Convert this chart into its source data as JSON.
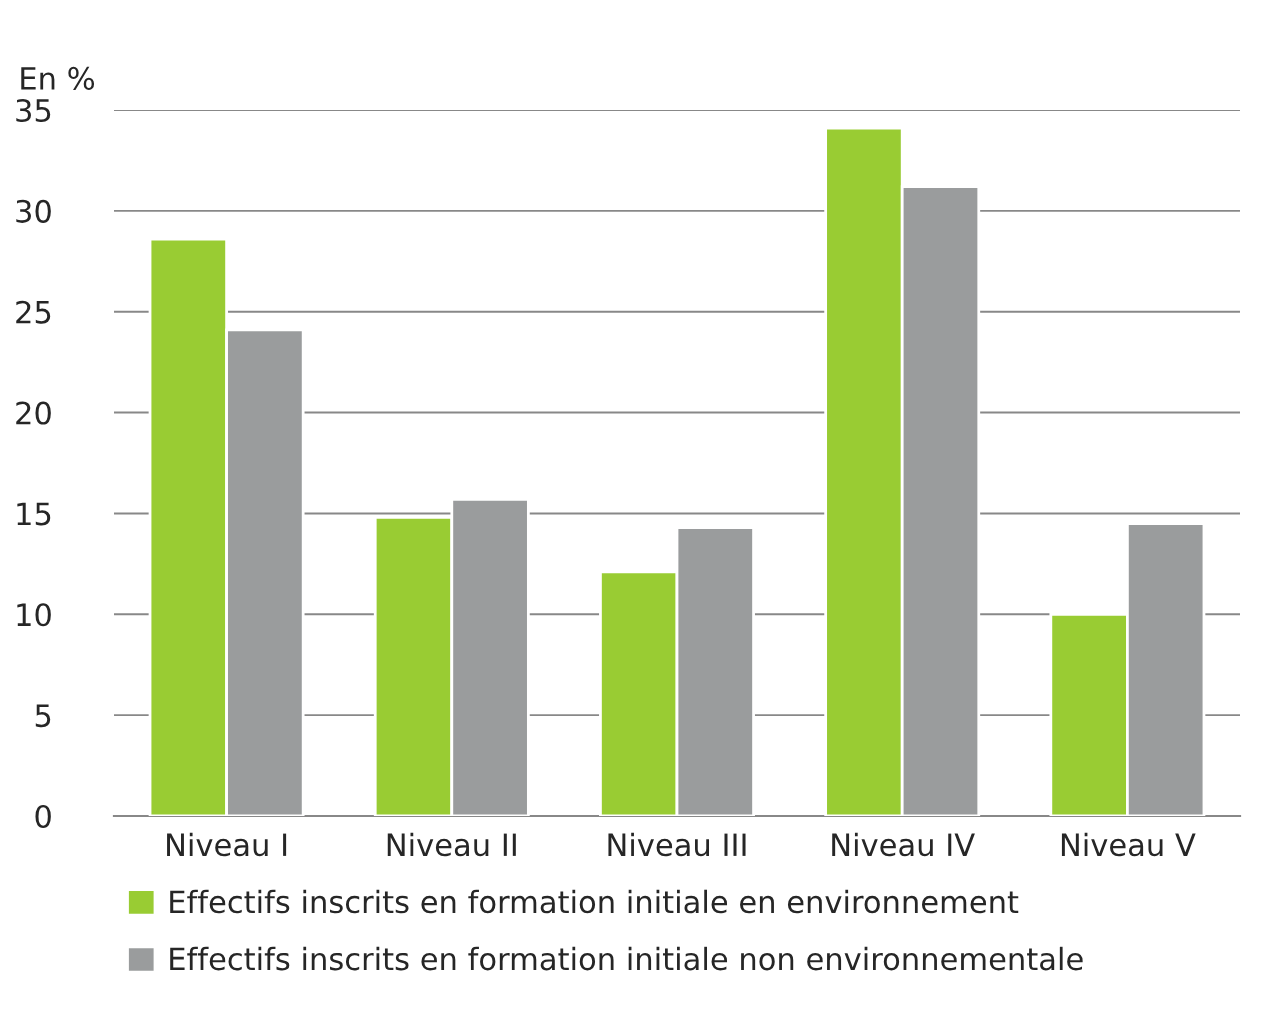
{
  "chart_data": {
    "type": "bar",
    "ylabel": "En %",
    "categories": [
      "Niveau I",
      "Niveau II",
      "Niveau III",
      "Niveau IV",
      "Niveau V"
    ],
    "series": [
      {
        "name": "Effectifs inscrits en formation initiale en environnement",
        "color": "#99cc33",
        "values": [
          28.6,
          14.8,
          12.1,
          34.1,
          10.0
        ]
      },
      {
        "name": "Effectifs inscrits en formation initiale non environnementale",
        "color": "#9a9c9d",
        "values": [
          24.1,
          15.7,
          14.3,
          31.2,
          14.5
        ]
      }
    ],
    "ylim": [
      0,
      35
    ],
    "yticks": [
      0,
      5,
      10,
      15,
      20,
      25,
      30,
      35
    ],
    "grid": "y",
    "legend": "bottom"
  }
}
